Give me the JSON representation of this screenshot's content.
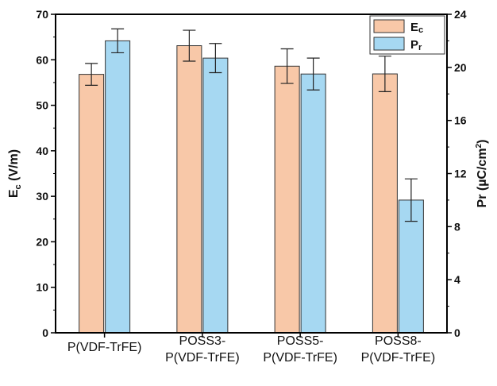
{
  "chart_data": {
    "type": "bar",
    "categories": [
      [
        "P(VDF-TrFE)"
      ],
      [
        "POSS3-",
        "P(VDF-TrFE)"
      ],
      [
        "POSS5-",
        "P(VDF-TrFE)"
      ],
      [
        "POSS8-",
        "P(VDF-TrFE)"
      ]
    ],
    "series": [
      {
        "name": "Ec",
        "axis": "left",
        "values": [
          56.8,
          63.1,
          58.6,
          56.9
        ],
        "errors": [
          2.4,
          3.4,
          3.8,
          3.9
        ],
        "color": "#f8c8a8"
      },
      {
        "name": "Pr",
        "axis": "right",
        "values": [
          22.0,
          20.7,
          19.5,
          10.0
        ],
        "errors": [
          0.9,
          1.1,
          1.2,
          1.6
        ],
        "color": "#a6d8f2"
      }
    ],
    "ylabel_left": {
      "main": "E",
      "sub": "c",
      "unit": " (V/m)"
    },
    "ylabel_right": {
      "main": "Pr (",
      "mu": "µ",
      "rest": "C/cm",
      "sup": "2",
      "close": ")"
    },
    "ylim_left": [
      0,
      70
    ],
    "yticks_left": [
      0,
      10,
      20,
      30,
      40,
      50,
      60,
      70
    ],
    "ylim_right": [
      0,
      24
    ],
    "yticks_right": [
      0,
      4,
      8,
      12,
      16,
      20,
      24
    ],
    "legend": {
      "placement": "top-right",
      "entries": [
        {
          "main": "E",
          "sub": "c"
        },
        {
          "main": "P",
          "sub": "r"
        }
      ]
    },
    "grid": false
  }
}
